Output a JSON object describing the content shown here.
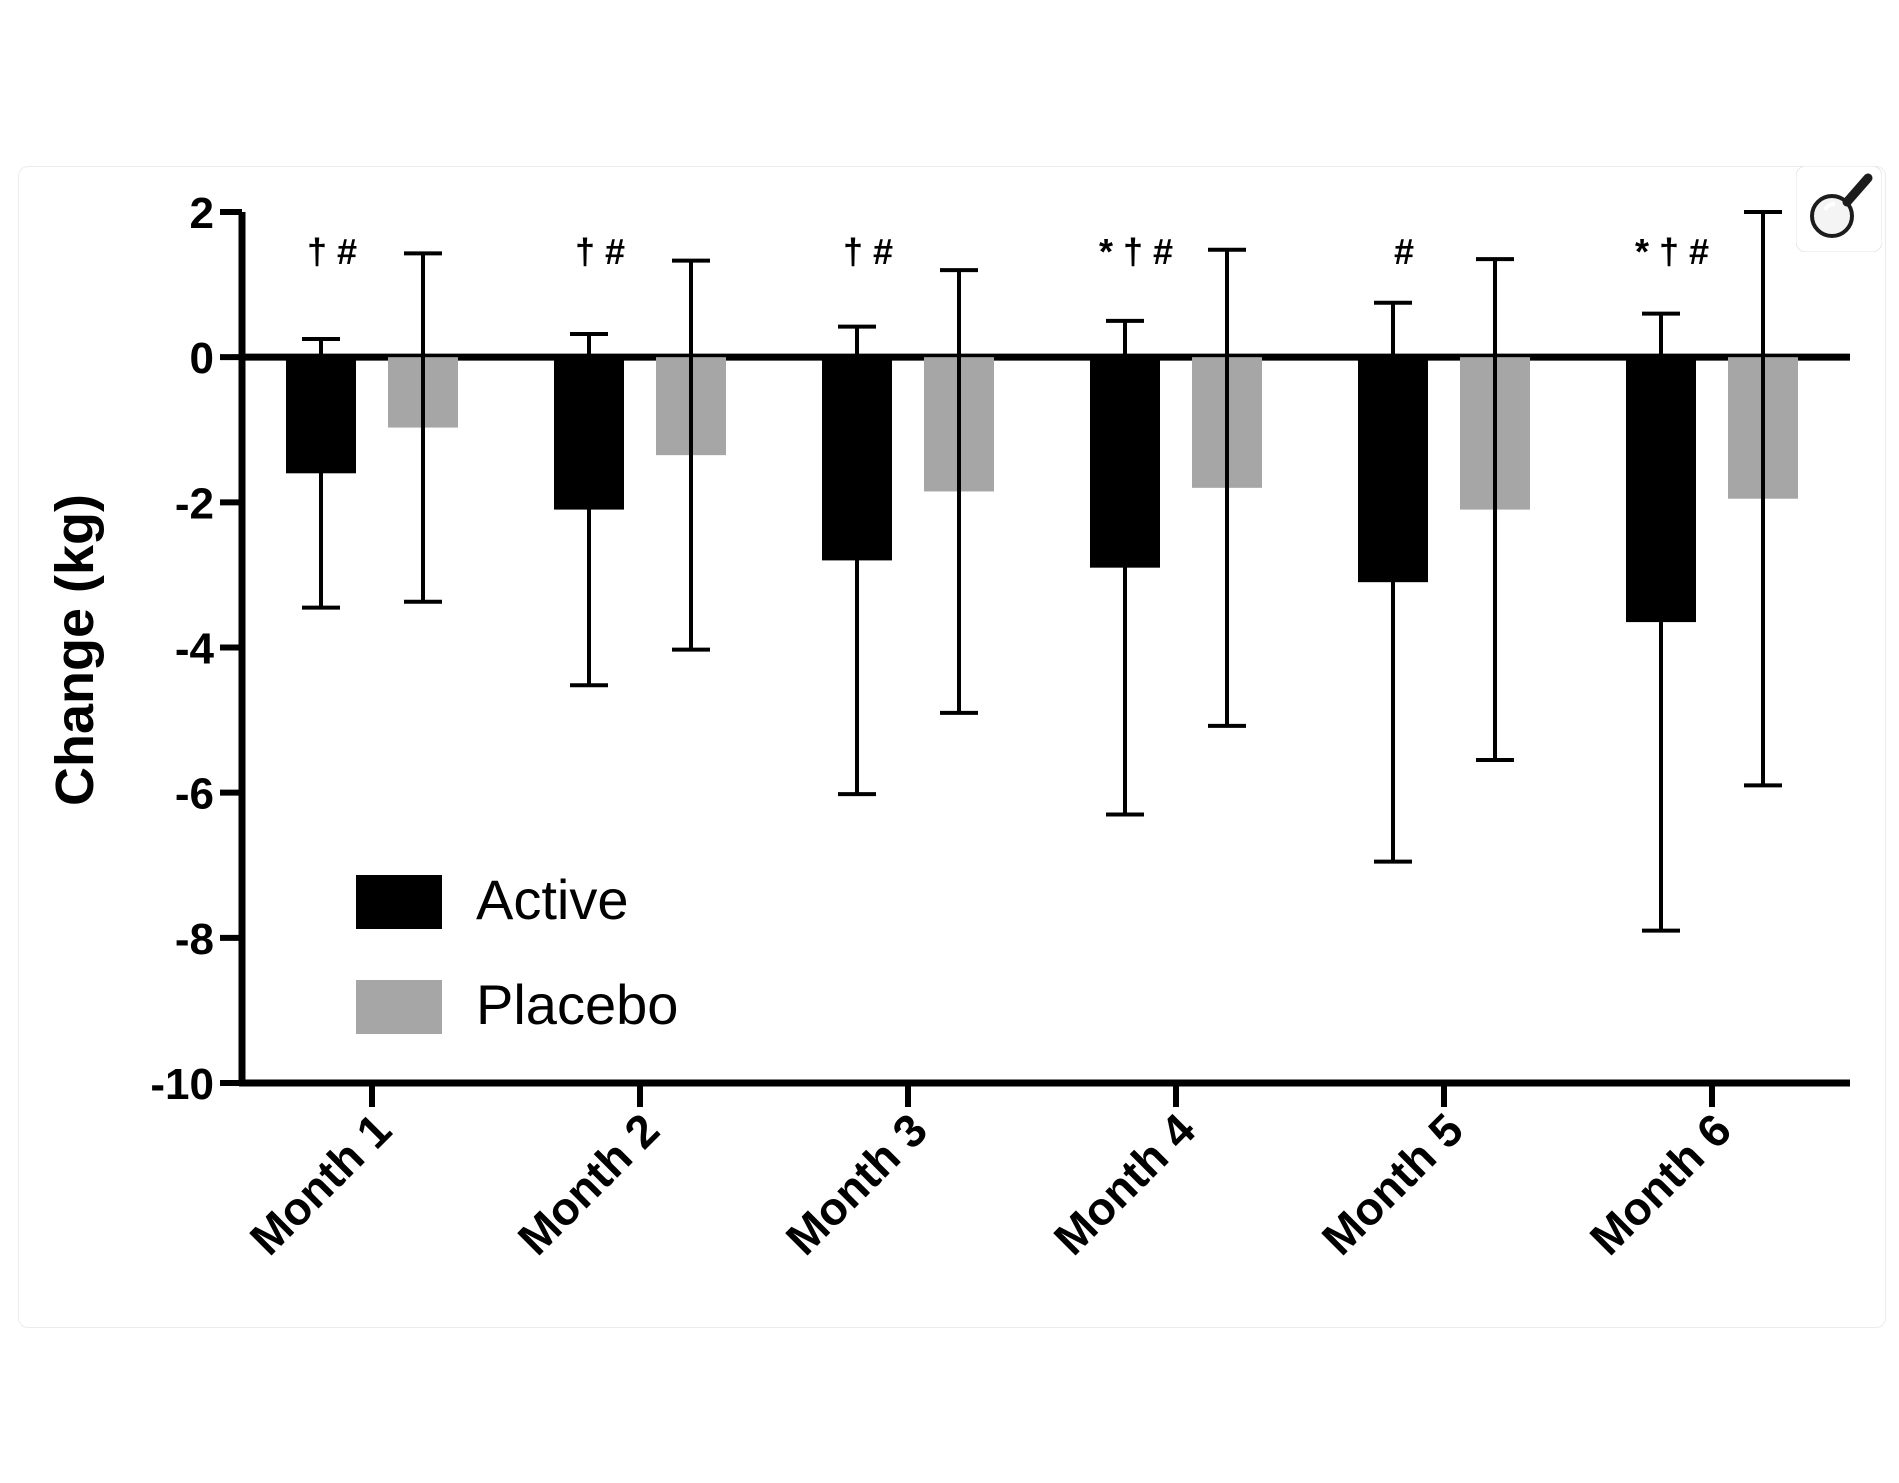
{
  "chart_data": {
    "type": "bar",
    "categories": [
      "Month 1",
      "Month 2",
      "Month 3",
      "Month 4",
      "Month 5",
      "Month 6"
    ],
    "series": [
      {
        "name": "Active",
        "color": "#000000",
        "values": [
          -1.6,
          -2.1,
          -2.8,
          -2.9,
          -3.1,
          -3.65
        ],
        "error": [
          1.85,
          2.42,
          3.22,
          3.4,
          3.85,
          4.25
        ]
      },
      {
        "name": "Placebo",
        "color": "#a6a6a6",
        "values": [
          -0.97,
          -1.35,
          -1.85,
          -1.8,
          -2.1,
          -1.95
        ],
        "error": [
          2.4,
          2.68,
          3.05,
          3.28,
          3.45,
          3.95
        ]
      }
    ],
    "annotations": [
      "† #",
      "† #",
      "† #",
      "* † #",
      "#",
      "* † #"
    ],
    "xlabel": "",
    "ylabel": "Change (kg)",
    "ylim": [
      -10,
      2
    ],
    "yticks": [
      "2",
      "0",
      "-2",
      "-4",
      "-6",
      "-8",
      "-10"
    ],
    "legend_position": "bottom-left",
    "grid": false
  },
  "toolbar": {
    "magnify_icon": "magnifying-glass-icon"
  }
}
